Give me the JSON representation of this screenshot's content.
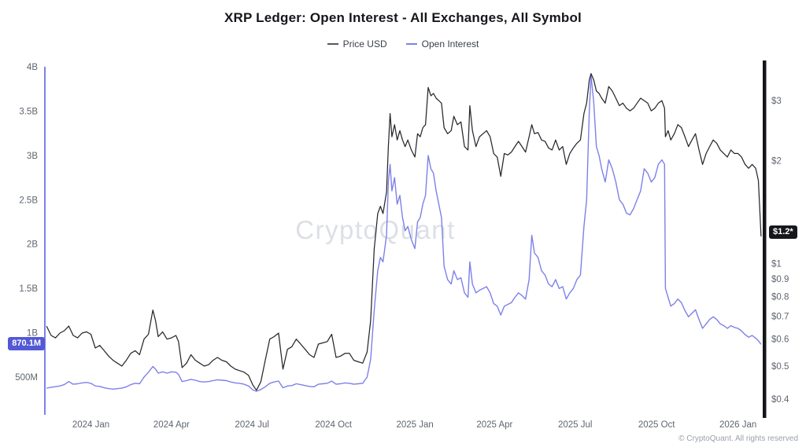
{
  "header": {
    "title": "XRP Ledger: Open Interest - All Exchanges, All Symbol"
  },
  "legend": [
    {
      "label": "Price USD",
      "color": "#55585f"
    },
    {
      "label": "Open Interest",
      "color": "#7d81e8"
    }
  ],
  "colors": {
    "price_line": "#26282d",
    "open_interest_line": "#7d81e8",
    "left_spine": "#7d81e8",
    "right_spine": "#141519",
    "oi_badge_bg": "#5358d5",
    "price_badge_bg": "#16171b",
    "axis_text": "#5f6570",
    "watermark": "#c7cdd8"
  },
  "badges": {
    "left": {
      "label": "870.1M",
      "value": 870.1
    },
    "right": {
      "label": "$1.2*",
      "value": 1.23
    }
  },
  "watermark": {
    "text": "CryptoQuant"
  },
  "footer": {
    "copyright": "© CryptoQuant. All rights reserved"
  },
  "chart_data": {
    "type": "line",
    "title": "XRP Ledger: Open Interest - All Exchanges, All Symbol",
    "grid": false,
    "legend_position": "top",
    "x_range": [
      "2023-11-10",
      "2026-01-28"
    ],
    "x_axis": {
      "ticks": [
        {
          "label": "2024 Jan",
          "date": "2024-01-01"
        },
        {
          "label": "2024 Apr",
          "date": "2024-04-01"
        },
        {
          "label": "2024 Jul",
          "date": "2024-07-01"
        },
        {
          "label": "2024 Oct",
          "date": "2024-10-01"
        },
        {
          "label": "2025 Jan",
          "date": "2025-01-01"
        },
        {
          "label": "2025 Apr",
          "date": "2025-04-01"
        },
        {
          "label": "2025 Jul",
          "date": "2025-07-01"
        },
        {
          "label": "2025 Oct",
          "date": "2025-10-01"
        },
        {
          "label": "2026 Jan",
          "date": "2026-01-01"
        }
      ]
    },
    "left_axis": {
      "name": "Open Interest",
      "unit": "USD (M = millions, B = billions)",
      "scale": "linear",
      "range": [
        75,
        4000
      ],
      "ticks": [
        {
          "label": "4B",
          "value": 4000
        },
        {
          "label": "3.5B",
          "value": 3500
        },
        {
          "label": "3B",
          "value": 3000
        },
        {
          "label": "2.5B",
          "value": 2500
        },
        {
          "label": "2B",
          "value": 2000
        },
        {
          "label": "1.5B",
          "value": 1500
        },
        {
          "label": "1B",
          "value": 1000
        },
        {
          "label": "500M",
          "value": 500
        }
      ]
    },
    "right_axis": {
      "name": "Price USD",
      "scale": "log",
      "range": [
        0.36,
        3.77
      ],
      "ticks": [
        {
          "label": "$3",
          "value": 3
        },
        {
          "label": "$2",
          "value": 2
        },
        {
          "label": "$1",
          "value": 1
        },
        {
          "label": "$0.9",
          "value": 0.9
        },
        {
          "label": "$0.8",
          "value": 0.8
        },
        {
          "label": "$0.7",
          "value": 0.7
        },
        {
          "label": "$0.6",
          "value": 0.6
        },
        {
          "label": "$0.5",
          "value": 0.5
        },
        {
          "label": "$0.4",
          "value": 0.4
        }
      ]
    },
    "series": [
      {
        "name": "Price USD",
        "axis": "right",
        "row_index": 1
      },
      {
        "name": "Open Interest",
        "axis": "left",
        "row_index": 2
      }
    ],
    "rows_format": [
      "date",
      "price_usd",
      "open_interest_million_usd"
    ],
    "rows": [
      [
        "2023-11-12",
        0.655,
        375
      ],
      [
        "2023-11-17",
        0.615,
        385
      ],
      [
        "2023-11-22",
        0.605,
        392
      ],
      [
        "2023-11-27",
        0.625,
        400
      ],
      [
        "2023-12-02",
        0.635,
        415
      ],
      [
        "2023-12-07",
        0.655,
        450
      ],
      [
        "2023-12-12",
        0.615,
        420
      ],
      [
        "2023-12-17",
        0.605,
        425
      ],
      [
        "2023-12-22",
        0.625,
        435
      ],
      [
        "2023-12-27",
        0.63,
        440
      ],
      [
        "2024-01-01",
        0.62,
        430
      ],
      [
        "2024-01-06",
        0.565,
        400
      ],
      [
        "2024-01-11",
        0.575,
        395
      ],
      [
        "2024-01-16",
        0.555,
        380
      ],
      [
        "2024-01-21",
        0.535,
        370
      ],
      [
        "2024-01-26",
        0.52,
        365
      ],
      [
        "2024-01-31",
        0.51,
        370
      ],
      [
        "2024-02-05",
        0.5,
        375
      ],
      [
        "2024-02-10",
        0.52,
        390
      ],
      [
        "2024-02-15",
        0.545,
        415
      ],
      [
        "2024-02-20",
        0.555,
        430
      ],
      [
        "2024-02-25",
        0.54,
        425
      ],
      [
        "2024-03-01",
        0.6,
        500
      ],
      [
        "2024-03-06",
        0.62,
        555
      ],
      [
        "2024-03-11",
        0.73,
        620
      ],
      [
        "2024-03-14",
        0.68,
        590
      ],
      [
        "2024-03-17",
        0.61,
        545
      ],
      [
        "2024-03-22",
        0.63,
        560
      ],
      [
        "2024-03-27",
        0.6,
        545
      ],
      [
        "2024-04-01",
        0.605,
        560
      ],
      [
        "2024-04-06",
        0.615,
        555
      ],
      [
        "2024-04-09",
        0.59,
        530
      ],
      [
        "2024-04-13",
        0.495,
        450
      ],
      [
        "2024-04-18",
        0.51,
        460
      ],
      [
        "2024-04-23",
        0.54,
        475
      ],
      [
        "2024-04-28",
        0.52,
        465
      ],
      [
        "2024-05-03",
        0.51,
        450
      ],
      [
        "2024-05-08",
        0.5,
        445
      ],
      [
        "2024-05-13",
        0.505,
        450
      ],
      [
        "2024-05-18",
        0.52,
        460
      ],
      [
        "2024-05-23",
        0.53,
        470
      ],
      [
        "2024-05-28",
        0.52,
        465
      ],
      [
        "2024-06-02",
        0.515,
        460
      ],
      [
        "2024-06-07",
        0.5,
        445
      ],
      [
        "2024-06-12",
        0.49,
        435
      ],
      [
        "2024-06-17",
        0.485,
        430
      ],
      [
        "2024-06-22",
        0.48,
        420
      ],
      [
        "2024-06-27",
        0.47,
        400
      ],
      [
        "2024-07-02",
        0.44,
        355
      ],
      [
        "2024-07-06",
        0.425,
        340
      ],
      [
        "2024-07-11",
        0.45,
        360
      ],
      [
        "2024-07-16",
        0.52,
        390
      ],
      [
        "2024-07-21",
        0.6,
        430
      ],
      [
        "2024-07-26",
        0.61,
        445
      ],
      [
        "2024-07-31",
        0.625,
        455
      ],
      [
        "2024-08-05",
        0.49,
        380
      ],
      [
        "2024-08-10",
        0.56,
        400
      ],
      [
        "2024-08-15",
        0.57,
        405
      ],
      [
        "2024-08-20",
        0.6,
        425
      ],
      [
        "2024-08-25",
        0.58,
        415
      ],
      [
        "2024-08-30",
        0.56,
        405
      ],
      [
        "2024-09-04",
        0.54,
        395
      ],
      [
        "2024-09-09",
        0.53,
        390
      ],
      [
        "2024-09-14",
        0.58,
        420
      ],
      [
        "2024-09-19",
        0.585,
        425
      ],
      [
        "2024-09-24",
        0.59,
        430
      ],
      [
        "2024-09-29",
        0.62,
        455
      ],
      [
        "2024-10-04",
        0.53,
        420
      ],
      [
        "2024-10-09",
        0.535,
        425
      ],
      [
        "2024-10-14",
        0.545,
        435
      ],
      [
        "2024-10-19",
        0.545,
        430
      ],
      [
        "2024-10-24",
        0.52,
        420
      ],
      [
        "2024-10-29",
        0.515,
        425
      ],
      [
        "2024-11-03",
        0.51,
        430
      ],
      [
        "2024-11-08",
        0.55,
        500
      ],
      [
        "2024-11-12",
        0.68,
        700
      ],
      [
        "2024-11-16",
        1.1,
        1250
      ],
      [
        "2024-11-20",
        1.4,
        1700
      ],
      [
        "2024-11-23",
        1.47,
        1850
      ],
      [
        "2024-11-26",
        1.4,
        1800
      ],
      [
        "2024-11-30",
        1.62,
        2100
      ],
      [
        "2024-12-02",
        2.2,
        2700
      ],
      [
        "2024-12-04",
        2.75,
        2900
      ],
      [
        "2024-12-06",
        2.35,
        2600
      ],
      [
        "2024-12-09",
        2.55,
        2750
      ],
      [
        "2024-12-12",
        2.3,
        2450
      ],
      [
        "2024-12-15",
        2.45,
        2550
      ],
      [
        "2024-12-18",
        2.3,
        2300
      ],
      [
        "2024-12-21",
        2.2,
        2150
      ],
      [
        "2024-12-24",
        2.3,
        2200
      ],
      [
        "2024-12-28",
        2.15,
        2050
      ],
      [
        "2025-01-01",
        2.05,
        1950
      ],
      [
        "2025-01-04",
        2.4,
        2250
      ],
      [
        "2025-01-07",
        2.35,
        2300
      ],
      [
        "2025-01-10",
        2.5,
        2450
      ],
      [
        "2025-01-13",
        2.55,
        2550
      ],
      [
        "2025-01-16",
        3.28,
        3000
      ],
      [
        "2025-01-19",
        3.1,
        2850
      ],
      [
        "2025-01-22",
        3.15,
        2800
      ],
      [
        "2025-01-25",
        3.05,
        2600
      ],
      [
        "2025-01-28",
        3.0,
        2450
      ],
      [
        "2025-01-31",
        2.95,
        2300
      ],
      [
        "2025-02-03",
        2.5,
        1750
      ],
      [
        "2025-02-07",
        2.4,
        1600
      ],
      [
        "2025-02-11",
        2.45,
        1550
      ],
      [
        "2025-02-14",
        2.7,
        1700
      ],
      [
        "2025-02-18",
        2.55,
        1600
      ],
      [
        "2025-02-22",
        2.6,
        1620
      ],
      [
        "2025-02-26",
        2.2,
        1450
      ],
      [
        "2025-03-02",
        2.15,
        1400
      ],
      [
        "2025-03-04",
        2.9,
        1800
      ],
      [
        "2025-03-07",
        2.45,
        1550
      ],
      [
        "2025-03-11",
        2.2,
        1450
      ],
      [
        "2025-03-15",
        2.35,
        1480
      ],
      [
        "2025-03-19",
        2.4,
        1500
      ],
      [
        "2025-03-23",
        2.45,
        1520
      ],
      [
        "2025-03-27",
        2.35,
        1450
      ],
      [
        "2025-03-31",
        2.1,
        1330
      ],
      [
        "2025-04-04",
        2.05,
        1300
      ],
      [
        "2025-04-08",
        1.8,
        1200
      ],
      [
        "2025-04-12",
        2.1,
        1300
      ],
      [
        "2025-04-16",
        2.08,
        1320
      ],
      [
        "2025-04-20",
        2.12,
        1340
      ],
      [
        "2025-04-24",
        2.2,
        1400
      ],
      [
        "2025-04-28",
        2.28,
        1450
      ],
      [
        "2025-05-02",
        2.2,
        1420
      ],
      [
        "2025-05-06",
        2.12,
        1380
      ],
      [
        "2025-05-10",
        2.35,
        1600
      ],
      [
        "2025-05-13",
        2.55,
        2100
      ],
      [
        "2025-05-16",
        2.4,
        1900
      ],
      [
        "2025-05-20",
        2.42,
        1850
      ],
      [
        "2025-05-24",
        2.3,
        1700
      ],
      [
        "2025-05-28",
        2.28,
        1650
      ],
      [
        "2025-06-01",
        2.18,
        1550
      ],
      [
        "2025-06-05",
        2.15,
        1520
      ],
      [
        "2025-06-09",
        2.3,
        1600
      ],
      [
        "2025-06-13",
        2.15,
        1500
      ],
      [
        "2025-06-17",
        2.2,
        1520
      ],
      [
        "2025-06-21",
        1.95,
        1380
      ],
      [
        "2025-06-25",
        2.1,
        1450
      ],
      [
        "2025-06-29",
        2.18,
        1500
      ],
      [
        "2025-07-03",
        2.25,
        1600
      ],
      [
        "2025-07-07",
        2.3,
        1650
      ],
      [
        "2025-07-11",
        2.75,
        2200
      ],
      [
        "2025-07-14",
        2.95,
        2500
      ],
      [
        "2025-07-17",
        3.45,
        3500
      ],
      [
        "2025-07-19",
        3.6,
        3900
      ],
      [
        "2025-07-22",
        3.45,
        3600
      ],
      [
        "2025-07-25",
        3.2,
        3100
      ],
      [
        "2025-07-28",
        3.15,
        3000
      ],
      [
        "2025-07-31",
        3.05,
        2850
      ],
      [
        "2025-08-04",
        2.95,
        2700
      ],
      [
        "2025-08-08",
        3.3,
        2950
      ],
      [
        "2025-08-12",
        3.2,
        2850
      ],
      [
        "2025-08-16",
        3.05,
        2700
      ],
      [
        "2025-08-20",
        2.9,
        2500
      ],
      [
        "2025-08-24",
        2.95,
        2450
      ],
      [
        "2025-08-28",
        2.85,
        2350
      ],
      [
        "2025-09-01",
        2.8,
        2330
      ],
      [
        "2025-09-05",
        2.85,
        2400
      ],
      [
        "2025-09-09",
        2.95,
        2500
      ],
      [
        "2025-09-13",
        3.05,
        2600
      ],
      [
        "2025-09-17",
        3.0,
        2850
      ],
      [
        "2025-09-21",
        2.95,
        2800
      ],
      [
        "2025-09-25",
        2.8,
        2700
      ],
      [
        "2025-09-29",
        2.85,
        2750
      ],
      [
        "2025-10-03",
        2.95,
        2900
      ],
      [
        "2025-10-07",
        3.0,
        2950
      ],
      [
        "2025-10-10",
        2.85,
        2900
      ],
      [
        "2025-10-11",
        2.35,
        1500
      ],
      [
        "2025-10-14",
        2.45,
        1400
      ],
      [
        "2025-10-17",
        2.3,
        1300
      ],
      [
        "2025-10-21",
        2.4,
        1330
      ],
      [
        "2025-10-25",
        2.55,
        1380
      ],
      [
        "2025-10-29",
        2.5,
        1340
      ],
      [
        "2025-11-02",
        2.35,
        1250
      ],
      [
        "2025-11-06",
        2.2,
        1180
      ],
      [
        "2025-11-10",
        2.3,
        1220
      ],
      [
        "2025-11-14",
        2.4,
        1260
      ],
      [
        "2025-11-18",
        2.15,
        1150
      ],
      [
        "2025-11-22",
        1.95,
        1050
      ],
      [
        "2025-11-26",
        2.1,
        1100
      ],
      [
        "2025-11-30",
        2.2,
        1150
      ],
      [
        "2025-12-04",
        2.3,
        1180
      ],
      [
        "2025-12-08",
        2.25,
        1150
      ],
      [
        "2025-12-12",
        2.15,
        1100
      ],
      [
        "2025-12-16",
        2.1,
        1080
      ],
      [
        "2025-12-20",
        2.05,
        1050
      ],
      [
        "2025-12-24",
        2.15,
        1080
      ],
      [
        "2025-12-28",
        2.1,
        1060
      ],
      [
        "2026-01-01",
        2.1,
        1050
      ],
      [
        "2026-01-05",
        2.05,
        1020
      ],
      [
        "2026-01-09",
        1.95,
        980
      ],
      [
        "2026-01-13",
        1.9,
        950
      ],
      [
        "2026-01-17",
        1.95,
        970
      ],
      [
        "2026-01-21",
        1.9,
        940
      ],
      [
        "2026-01-24",
        1.75,
        910
      ],
      [
        "2026-01-27",
        1.2,
        870.1
      ]
    ],
    "current_values": {
      "open_interest": "870.1M",
      "price_usd": "$1.2*"
    }
  }
}
